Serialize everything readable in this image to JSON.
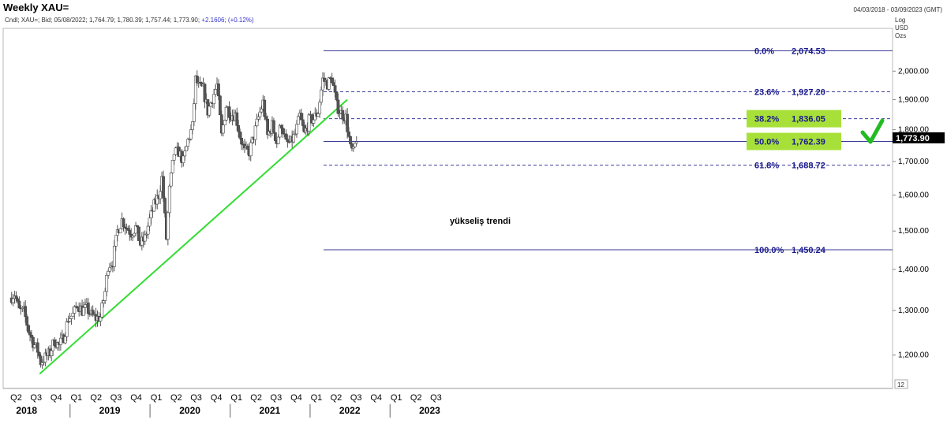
{
  "header": {
    "title": "Weekly XAU=",
    "date_range": "04/03/2018 - 03/09/2023 (GMT)",
    "ohlc_text": "Cndl; XAU=; Bid; 05/08/2022; 1,764.79; 1,780.39; 1,757.44; 1,773.90;",
    "change_text": "+2.1606; (+0.12%)"
  },
  "axis_info": {
    "scale_label": "Log",
    "currency_label": "USD",
    "unit_label": "Ozs",
    "period_box": "12"
  },
  "colors": {
    "fib_line": "#3a3a9a",
    "fib_text": "#1a1a8c",
    "trend_line": "#33dd33",
    "highlight": "#a8e03a",
    "checkmark": "#22bb22",
    "candle_up": "#ffffff",
    "candle_down": "#555555"
  },
  "icons": {
    "check": "check-icon"
  },
  "chart_data": {
    "type": "candlestick",
    "title": "Weekly XAU=",
    "scale": "log",
    "y_unit": "USD",
    "ylim": [
      1130,
      2160
    ],
    "y_ticks": [
      1200,
      1300,
      1400,
      1500,
      1600,
      1700,
      1800,
      1900,
      2000
    ],
    "y_tick_labels": [
      "1,200.00",
      "1,300.00",
      "1,400.00",
      "1,500.00",
      "1,600.00",
      "1,700.00",
      "1,800.00",
      "1,900.00",
      "2,000.00"
    ],
    "quarter_labels": [
      "Q2",
      "Q3",
      "Q4",
      "Q1",
      "Q2",
      "Q3",
      "Q4",
      "Q1",
      "Q2",
      "Q3",
      "Q4",
      "Q1",
      "Q2",
      "Q3",
      "Q4",
      "Q1",
      "Q2",
      "Q3",
      "Q4",
      "Q1",
      "Q2",
      "Q3"
    ],
    "year_labels": [
      "2018",
      "2019",
      "2020",
      "2021",
      "2022",
      "2023"
    ],
    "last_price": 1773.9,
    "last_price_label": "1,773.90",
    "fibonacci": [
      {
        "pct": "0.0%",
        "value": 2074.53,
        "label": "2,074.53",
        "style": "solid",
        "highlight": false
      },
      {
        "pct": "23.6%",
        "value": 1927.2,
        "label": "1,927.20",
        "style": "dashed",
        "highlight": false
      },
      {
        "pct": "38.2%",
        "value": 1836.05,
        "label": "1,836.05",
        "style": "dashed",
        "highlight": true
      },
      {
        "pct": "50.0%",
        "value": 1762.39,
        "label": "1,762.39",
        "style": "solid",
        "highlight": true
      },
      {
        "pct": "61.8%",
        "value": 1688.72,
        "label": "1,688.72",
        "style": "dashed",
        "highlight": false
      },
      {
        "pct": "100.0%",
        "value": 1450.24,
        "label": "1,450.24",
        "style": "solid",
        "highlight": false
      }
    ],
    "trend_label": "yükseliş trendi",
    "trend_line": {
      "start": [
        "2018-08-15",
        1160
      ],
      "end": [
        "2022-06-20",
        1900
      ]
    },
    "series": [
      {
        "date": "2018-04-02",
        "close": 1330
      },
      {
        "date": "2018-04-23",
        "close": 1340
      },
      {
        "date": "2018-05-14",
        "close": 1300
      },
      {
        "date": "2018-06-04",
        "close": 1298
      },
      {
        "date": "2018-06-25",
        "close": 1255
      },
      {
        "date": "2018-07-16",
        "close": 1228
      },
      {
        "date": "2018-08-06",
        "close": 1210
      },
      {
        "date": "2018-08-20",
        "close": 1185
      },
      {
        "date": "2018-09-10",
        "close": 1195
      },
      {
        "date": "2018-10-01",
        "close": 1205
      },
      {
        "date": "2018-10-22",
        "close": 1232
      },
      {
        "date": "2018-11-12",
        "close": 1220
      },
      {
        "date": "2018-12-03",
        "close": 1240
      },
      {
        "date": "2018-12-24",
        "close": 1282
      },
      {
        "date": "2019-01-14",
        "close": 1290
      },
      {
        "date": "2019-02-04",
        "close": 1315
      },
      {
        "date": "2019-02-25",
        "close": 1300
      },
      {
        "date": "2019-03-18",
        "close": 1305
      },
      {
        "date": "2019-04-08",
        "close": 1290
      },
      {
        "date": "2019-04-29",
        "close": 1282
      },
      {
        "date": "2019-05-20",
        "close": 1285
      },
      {
        "date": "2019-06-10",
        "close": 1345
      },
      {
        "date": "2019-06-24",
        "close": 1410
      },
      {
        "date": "2019-07-15",
        "close": 1420
      },
      {
        "date": "2019-08-05",
        "close": 1500
      },
      {
        "date": "2019-08-26",
        "close": 1530
      },
      {
        "date": "2019-09-16",
        "close": 1510
      },
      {
        "date": "2019-10-07",
        "close": 1495
      },
      {
        "date": "2019-10-28",
        "close": 1510
      },
      {
        "date": "2019-11-18",
        "close": 1465
      },
      {
        "date": "2019-12-09",
        "close": 1480
      },
      {
        "date": "2019-12-30",
        "close": 1530
      },
      {
        "date": "2020-01-20",
        "close": 1570
      },
      {
        "date": "2020-02-10",
        "close": 1600
      },
      {
        "date": "2020-02-24",
        "close": 1650
      },
      {
        "date": "2020-03-16",
        "close": 1480
      },
      {
        "date": "2020-03-30",
        "close": 1615
      },
      {
        "date": "2020-04-20",
        "close": 1725
      },
      {
        "date": "2020-05-11",
        "close": 1730
      },
      {
        "date": "2020-06-01",
        "close": 1700
      },
      {
        "date": "2020-06-22",
        "close": 1765
      },
      {
        "date": "2020-07-13",
        "close": 1810
      },
      {
        "date": "2020-07-27",
        "close": 1970
      },
      {
        "date": "2020-08-10",
        "close": 1945
      },
      {
        "date": "2020-08-31",
        "close": 1935
      },
      {
        "date": "2020-09-21",
        "close": 1860
      },
      {
        "date": "2020-10-12",
        "close": 1905
      },
      {
        "date": "2020-11-02",
        "close": 1950
      },
      {
        "date": "2020-11-23",
        "close": 1780
      },
      {
        "date": "2020-12-14",
        "close": 1880
      },
      {
        "date": "2021-01-04",
        "close": 1850
      },
      {
        "date": "2021-01-25",
        "close": 1850
      },
      {
        "date": "2021-02-15",
        "close": 1780
      },
      {
        "date": "2021-03-08",
        "close": 1730
      },
      {
        "date": "2021-03-29",
        "close": 1730
      },
      {
        "date": "2021-04-19",
        "close": 1780
      },
      {
        "date": "2021-05-10",
        "close": 1840
      },
      {
        "date": "2021-05-31",
        "close": 1890
      },
      {
        "date": "2021-06-21",
        "close": 1780
      },
      {
        "date": "2021-07-12",
        "close": 1815
      },
      {
        "date": "2021-08-02",
        "close": 1760
      },
      {
        "date": "2021-08-23",
        "close": 1820
      },
      {
        "date": "2021-09-13",
        "close": 1755
      },
      {
        "date": "2021-10-04",
        "close": 1760
      },
      {
        "date": "2021-10-25",
        "close": 1785
      },
      {
        "date": "2021-11-15",
        "close": 1845
      },
      {
        "date": "2021-12-06",
        "close": 1785
      },
      {
        "date": "2021-12-27",
        "close": 1830
      },
      {
        "date": "2022-01-17",
        "close": 1835
      },
      {
        "date": "2022-02-07",
        "close": 1860
      },
      {
        "date": "2022-02-28",
        "close": 1970
      },
      {
        "date": "2022-03-21",
        "close": 1955
      },
      {
        "date": "2022-04-11",
        "close": 1975
      },
      {
        "date": "2022-05-02",
        "close": 1880
      },
      {
        "date": "2022-05-23",
        "close": 1855
      },
      {
        "date": "2022-06-13",
        "close": 1840
      },
      {
        "date": "2022-07-04",
        "close": 1740
      },
      {
        "date": "2022-07-18",
        "close": 1727
      },
      {
        "date": "2022-08-01",
        "close": 1773.9
      }
    ]
  }
}
